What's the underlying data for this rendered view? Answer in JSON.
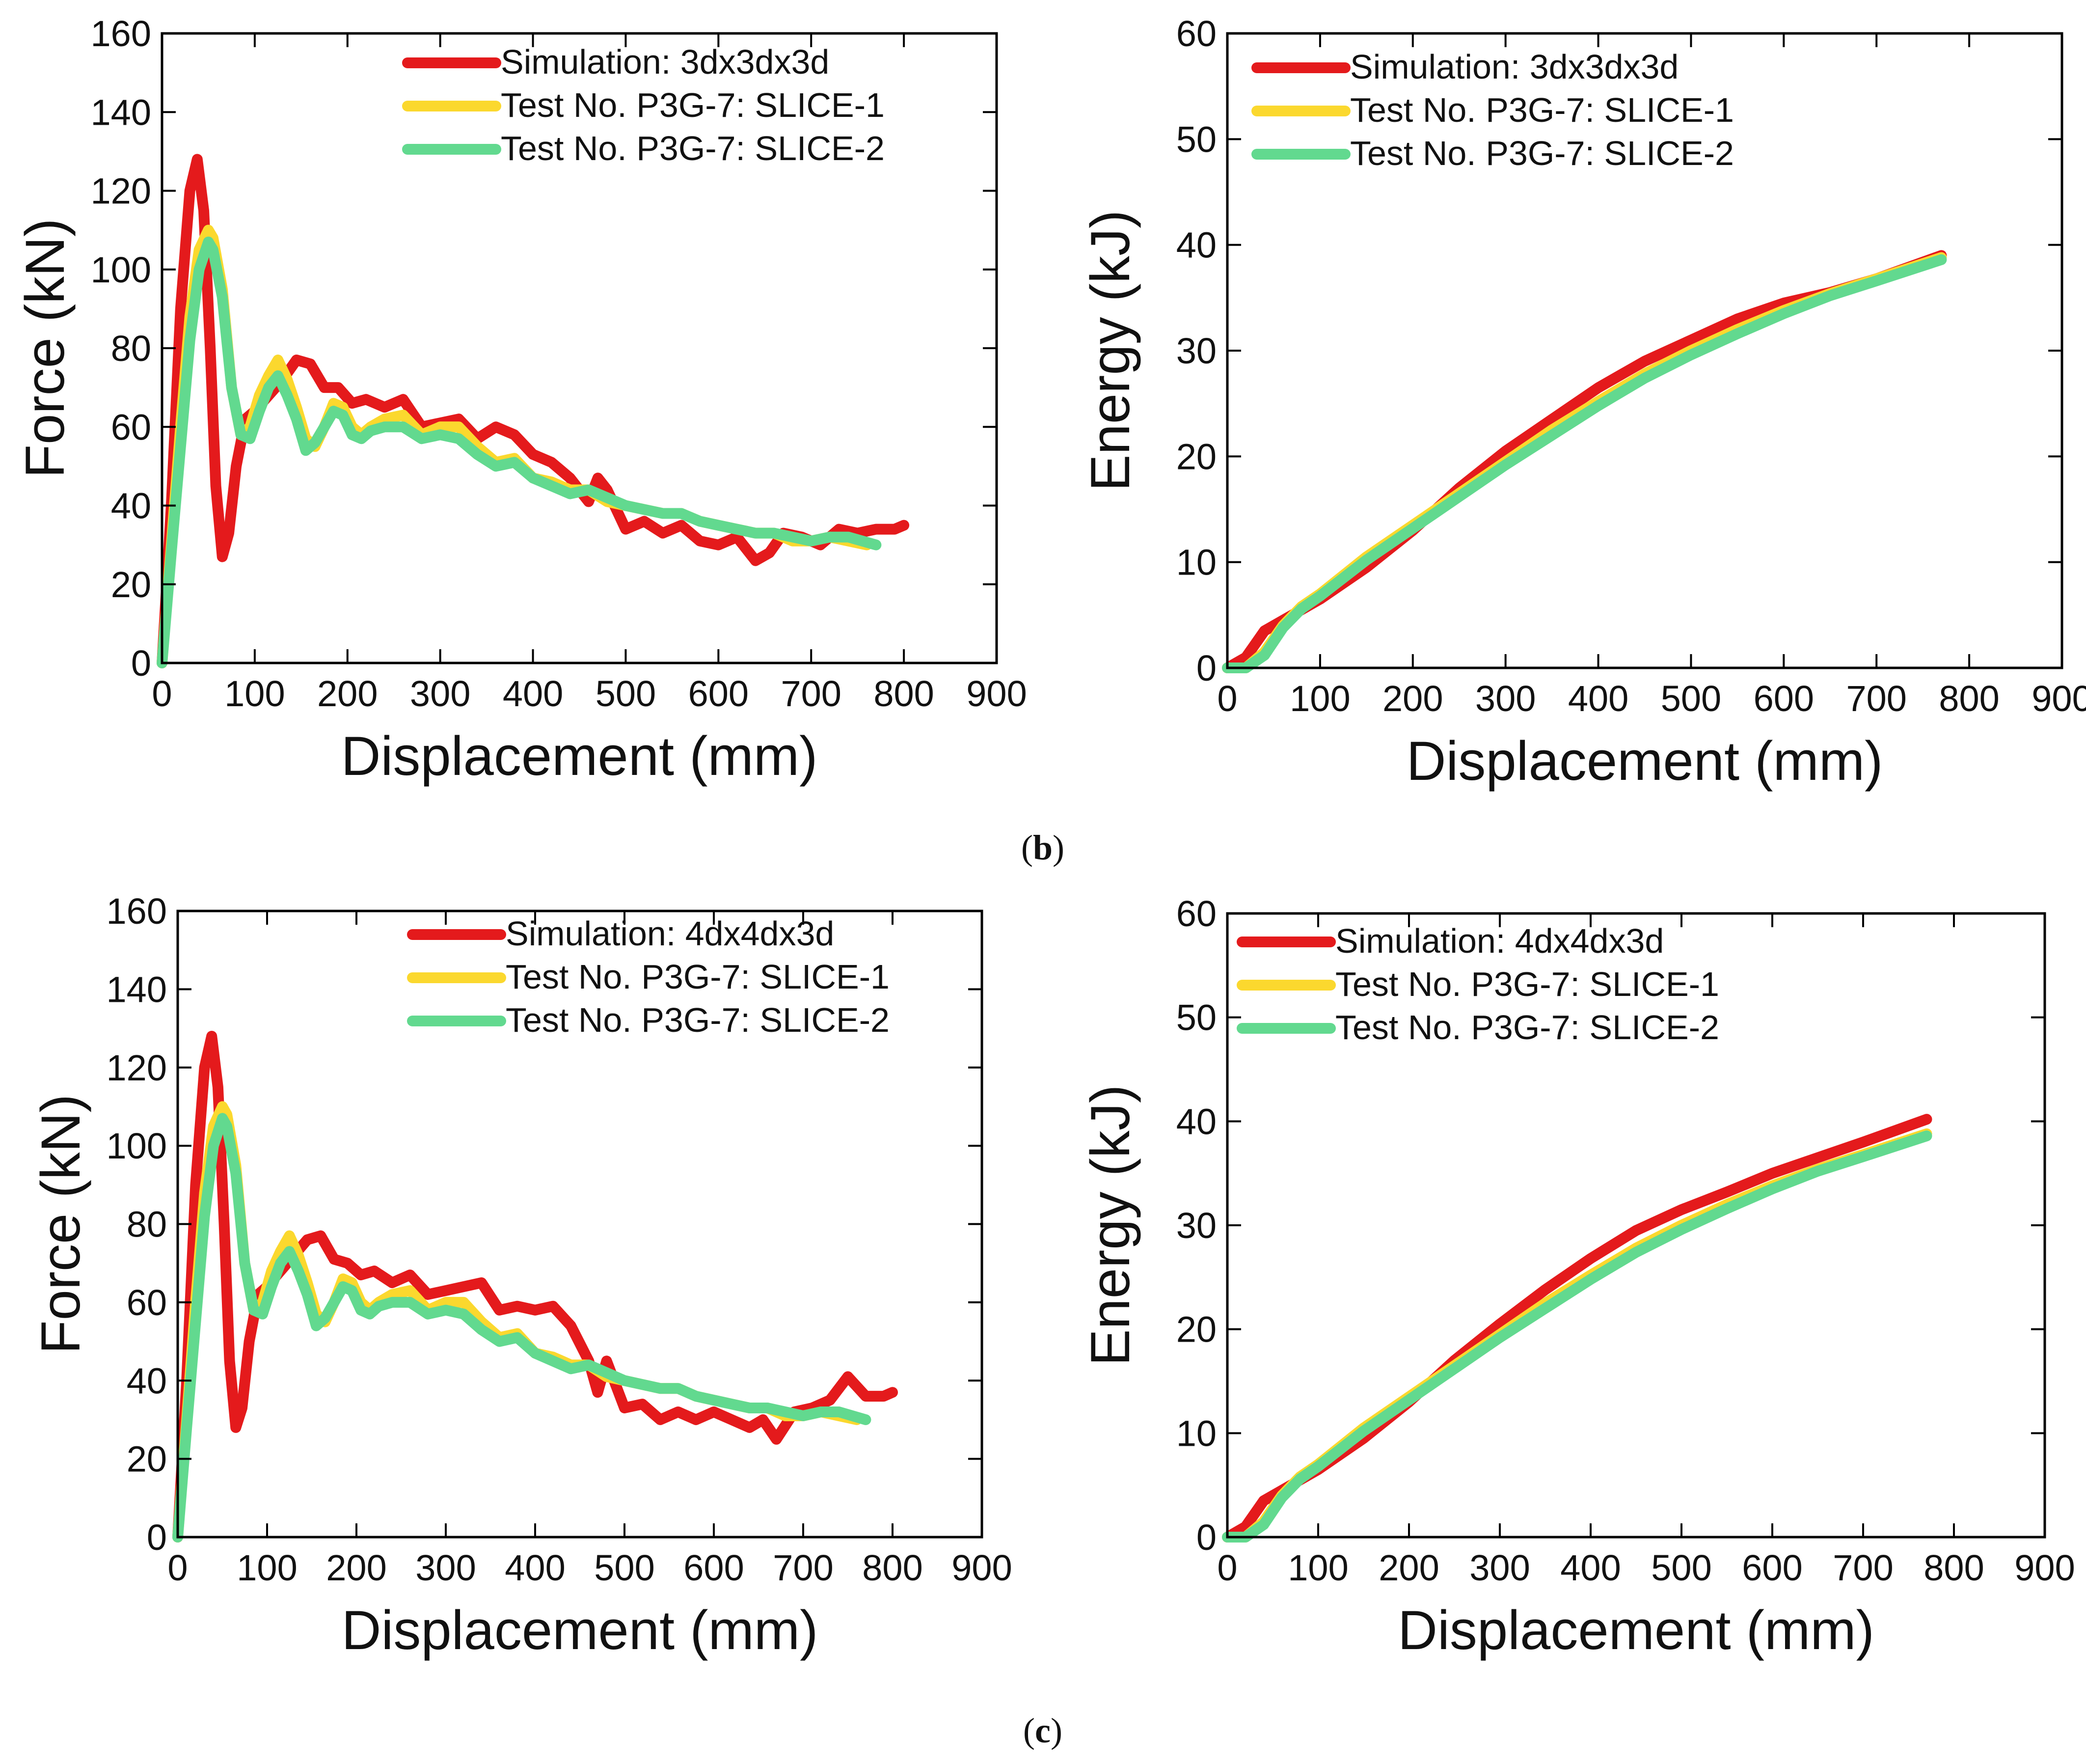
{
  "figure": {
    "captions": [
      {
        "open": "(",
        "letter": "b",
        "close": ")"
      },
      {
        "open": "(",
        "letter": "c",
        "close": ")"
      }
    ]
  },
  "chart_data": [
    {
      "type": "line",
      "panel": "b-left",
      "xlabel": "Displacement (mm)",
      "ylabel": "Force (kN)",
      "xlim": [
        0,
        900
      ],
      "ylim": [
        0,
        160
      ],
      "xticks": [
        0,
        100,
        200,
        300,
        400,
        500,
        600,
        700,
        800,
        900
      ],
      "yticks": [
        0,
        20,
        40,
        60,
        80,
        100,
        120,
        140,
        160
      ],
      "legend_position": "top-right",
      "series": [
        {
          "name": "Simulation: 3dx3dx3d",
          "color": "#e41a1c",
          "x": [
            0,
            10,
            20,
            30,
            38,
            45,
            52,
            58,
            65,
            72,
            80,
            90,
            100,
            115,
            130,
            145,
            160,
            175,
            190,
            205,
            220,
            240,
            260,
            280,
            300,
            320,
            340,
            360,
            380,
            400,
            420,
            440,
            460,
            470,
            480,
            500,
            520,
            540,
            560,
            580,
            600,
            620,
            640,
            655,
            670,
            690,
            710,
            730,
            750,
            770,
            790,
            800
          ],
          "y": [
            0,
            40,
            90,
            120,
            128,
            115,
            80,
            45,
            27,
            33,
            50,
            62,
            64,
            68,
            72,
            77,
            76,
            70,
            70,
            66,
            67,
            65,
            67,
            60,
            61,
            62,
            57,
            60,
            58,
            53,
            51,
            47,
            41,
            47,
            44,
            34,
            36,
            33,
            35,
            31,
            30,
            32,
            26,
            28,
            33,
            32,
            30,
            34,
            33,
            34,
            34,
            35
          ]
        },
        {
          "name": "Test No. P3G-7: SLICE-1",
          "color": "#fbd82e",
          "x": [
            0,
            10,
            20,
            30,
            40,
            50,
            55,
            65,
            75,
            85,
            95,
            105,
            115,
            125,
            135,
            145,
            155,
            165,
            175,
            185,
            195,
            205,
            215,
            225,
            240,
            260,
            280,
            300,
            320,
            340,
            360,
            380,
            400,
            420,
            440,
            460,
            480,
            500,
            520,
            540,
            560,
            580,
            600,
            620,
            640,
            660,
            680,
            700,
            720,
            740,
            760
          ],
          "y": [
            0,
            30,
            60,
            88,
            105,
            110,
            108,
            95,
            70,
            58,
            60,
            68,
            73,
            77,
            72,
            65,
            57,
            55,
            60,
            66,
            65,
            60,
            58,
            60,
            62,
            63,
            58,
            60,
            60,
            55,
            51,
            52,
            47,
            46,
            44,
            44,
            41,
            40,
            39,
            38,
            38,
            36,
            35,
            34,
            33,
            33,
            31,
            31,
            32,
            31,
            30
          ]
        },
        {
          "name": "Test No. P3G-7: SLICE-2",
          "color": "#62d98f",
          "x": [
            0,
            10,
            20,
            30,
            40,
            50,
            55,
            65,
            75,
            85,
            95,
            105,
            115,
            125,
            135,
            145,
            155,
            165,
            175,
            185,
            195,
            205,
            215,
            225,
            240,
            260,
            280,
            300,
            320,
            340,
            360,
            380,
            400,
            420,
            440,
            460,
            480,
            500,
            520,
            540,
            560,
            580,
            600,
            620,
            640,
            660,
            680,
            700,
            720,
            740,
            770
          ],
          "y": [
            0,
            28,
            55,
            82,
            100,
            107,
            105,
            93,
            70,
            58,
            57,
            64,
            70,
            73,
            68,
            62,
            54,
            56,
            60,
            64,
            63,
            58,
            57,
            59,
            60,
            60,
            57,
            58,
            57,
            53,
            50,
            51,
            47,
            45,
            43,
            44,
            42,
            40,
            39,
            38,
            38,
            36,
            35,
            34,
            33,
            33,
            32,
            31,
            32,
            32,
            30
          ]
        }
      ]
    },
    {
      "type": "line",
      "panel": "b-right",
      "xlabel": "Displacement (mm)",
      "ylabel": "Energy (kJ)",
      "xlim": [
        0,
        900
      ],
      "ylim": [
        0,
        60
      ],
      "xticks": [
        0,
        100,
        200,
        300,
        400,
        500,
        600,
        700,
        800,
        900
      ],
      "yticks": [
        0,
        10,
        20,
        30,
        40,
        50,
        60
      ],
      "legend_position": "top-left",
      "series": [
        {
          "name": "Simulation: 3dx3dx3d",
          "color": "#e41a1c",
          "x": [
            0,
            20,
            40,
            60,
            80,
            100,
            150,
            200,
            250,
            300,
            350,
            400,
            450,
            500,
            550,
            600,
            650,
            700,
            770
          ],
          "y": [
            0,
            1,
            3.5,
            4.5,
            5.5,
            6.5,
            9.5,
            13,
            17,
            20.5,
            23.5,
            26.5,
            29,
            31,
            33,
            34.5,
            35.5,
            36.8,
            39
          ]
        },
        {
          "name": "Test No. P3G-7: SLICE-1",
          "color": "#fbd82e",
          "x": [
            0,
            20,
            40,
            60,
            80,
            100,
            150,
            200,
            250,
            300,
            350,
            400,
            450,
            500,
            550,
            600,
            650,
            700,
            770
          ],
          "y": [
            0,
            0,
            1.5,
            4,
            5.8,
            7,
            10.5,
            13.5,
            16.5,
            19.5,
            22.5,
            25.2,
            27.8,
            30,
            32,
            33.8,
            35.4,
            36.8,
            38.8
          ]
        },
        {
          "name": "Test No. P3G-7: SLICE-2",
          "color": "#62d98f",
          "x": [
            0,
            20,
            40,
            60,
            80,
            100,
            150,
            200,
            250,
            300,
            350,
            400,
            450,
            500,
            550,
            600,
            650,
            700,
            770
          ],
          "y": [
            0,
            0,
            1.2,
            3.8,
            5.6,
            6.8,
            10.2,
            13.2,
            16.2,
            19.2,
            22,
            24.8,
            27.4,
            29.6,
            31.6,
            33.5,
            35.2,
            36.6,
            38.6
          ]
        }
      ]
    },
    {
      "type": "line",
      "panel": "c-left",
      "xlabel": "Displacement (mm)",
      "ylabel": "Force (kN)",
      "xlim": [
        0,
        900
      ],
      "ylim": [
        0,
        160
      ],
      "xticks": [
        0,
        100,
        200,
        300,
        400,
        500,
        600,
        700,
        800,
        900
      ],
      "yticks": [
        0,
        20,
        40,
        60,
        80,
        100,
        120,
        140,
        160
      ],
      "legend_position": "top-right",
      "series": [
        {
          "name": "Simulation: 4dx4dx3d",
          "color": "#e41a1c",
          "x": [
            0,
            10,
            20,
            30,
            38,
            45,
            52,
            58,
            65,
            72,
            80,
            90,
            100,
            115,
            130,
            145,
            160,
            175,
            190,
            205,
            220,
            240,
            260,
            280,
            300,
            320,
            340,
            360,
            380,
            400,
            420,
            440,
            460,
            470,
            480,
            500,
            520,
            540,
            560,
            580,
            600,
            620,
            640,
            655,
            670,
            690,
            710,
            730,
            750,
            770,
            790,
            800
          ],
          "y": [
            0,
            40,
            90,
            120,
            128,
            115,
            80,
            45,
            28,
            33,
            50,
            62,
            64,
            68,
            72,
            76,
            77,
            71,
            70,
            67,
            68,
            65,
            67,
            62,
            63,
            64,
            65,
            58,
            59,
            58,
            59,
            54,
            45,
            37,
            45,
            33,
            34,
            30,
            32,
            30,
            32,
            30,
            28,
            30,
            25,
            32,
            33,
            35,
            41,
            36,
            36,
            37
          ]
        },
        {
          "name": "Test No. P3G-7: SLICE-1",
          "color": "#fbd82e",
          "x": [
            0,
            10,
            20,
            30,
            40,
            50,
            55,
            65,
            75,
            85,
            95,
            105,
            115,
            125,
            135,
            145,
            155,
            165,
            175,
            185,
            195,
            205,
            215,
            225,
            240,
            260,
            280,
            300,
            320,
            340,
            360,
            380,
            400,
            420,
            440,
            460,
            480,
            500,
            520,
            540,
            560,
            580,
            600,
            620,
            640,
            660,
            680,
            700,
            720,
            740,
            760
          ],
          "y": [
            0,
            30,
            60,
            88,
            105,
            110,
            108,
            95,
            70,
            58,
            60,
            68,
            73,
            77,
            72,
            65,
            57,
            55,
            60,
            66,
            65,
            60,
            58,
            60,
            62,
            63,
            58,
            60,
            60,
            55,
            51,
            52,
            47,
            46,
            44,
            44,
            41,
            40,
            39,
            38,
            38,
            36,
            35,
            34,
            33,
            33,
            31,
            31,
            32,
            31,
            30
          ]
        },
        {
          "name": "Test No. P3G-7: SLICE-2",
          "color": "#62d98f",
          "x": [
            0,
            10,
            20,
            30,
            40,
            50,
            55,
            65,
            75,
            85,
            95,
            105,
            115,
            125,
            135,
            145,
            155,
            165,
            175,
            185,
            195,
            205,
            215,
            225,
            240,
            260,
            280,
            300,
            320,
            340,
            360,
            380,
            400,
            420,
            440,
            460,
            480,
            500,
            520,
            540,
            560,
            580,
            600,
            620,
            640,
            660,
            680,
            700,
            720,
            740,
            770
          ],
          "y": [
            0,
            28,
            55,
            82,
            100,
            107,
            105,
            93,
            70,
            58,
            57,
            64,
            70,
            73,
            68,
            62,
            54,
            56,
            60,
            64,
            63,
            58,
            57,
            59,
            60,
            60,
            57,
            58,
            57,
            53,
            50,
            51,
            47,
            45,
            43,
            44,
            42,
            40,
            39,
            38,
            38,
            36,
            35,
            34,
            33,
            33,
            32,
            31,
            32,
            32,
            30
          ]
        }
      ]
    },
    {
      "type": "line",
      "panel": "c-right",
      "xlabel": "Displacement (mm)",
      "ylabel": "Energy (kJ)",
      "xlim": [
        0,
        900
      ],
      "ylim": [
        0,
        60
      ],
      "xticks": [
        0,
        100,
        200,
        300,
        400,
        500,
        600,
        700,
        800,
        900
      ],
      "yticks": [
        0,
        10,
        20,
        30,
        40,
        50,
        60
      ],
      "legend_position": "top-left",
      "series": [
        {
          "name": "Simulation: 4dx4dx3d",
          "color": "#e41a1c",
          "x": [
            0,
            20,
            40,
            60,
            80,
            100,
            150,
            200,
            250,
            300,
            350,
            400,
            450,
            500,
            550,
            600,
            650,
            700,
            770
          ],
          "y": [
            0,
            1,
            3.5,
            4.5,
            5.5,
            6.5,
            9.5,
            13,
            17,
            20.5,
            23.8,
            26.8,
            29.5,
            31.5,
            33.2,
            35,
            36.5,
            38,
            40.2
          ]
        },
        {
          "name": "Test No. P3G-7: SLICE-1",
          "color": "#fbd82e",
          "x": [
            0,
            20,
            40,
            60,
            80,
            100,
            150,
            200,
            250,
            300,
            350,
            400,
            450,
            500,
            550,
            600,
            650,
            700,
            770
          ],
          "y": [
            0,
            0,
            1.5,
            4,
            5.8,
            7,
            10.5,
            13.5,
            16.5,
            19.5,
            22.5,
            25.2,
            27.8,
            30,
            32,
            33.8,
            35.4,
            36.8,
            38.8
          ]
        },
        {
          "name": "Test No. P3G-7: SLICE-2",
          "color": "#62d98f",
          "x": [
            0,
            20,
            40,
            60,
            80,
            100,
            150,
            200,
            250,
            300,
            350,
            400,
            450,
            500,
            550,
            600,
            650,
            700,
            770
          ],
          "y": [
            0,
            0,
            1.2,
            3.8,
            5.6,
            6.8,
            10.2,
            13.2,
            16.2,
            19.2,
            22,
            24.8,
            27.4,
            29.6,
            31.6,
            33.5,
            35.2,
            36.6,
            38.6
          ]
        }
      ]
    }
  ]
}
